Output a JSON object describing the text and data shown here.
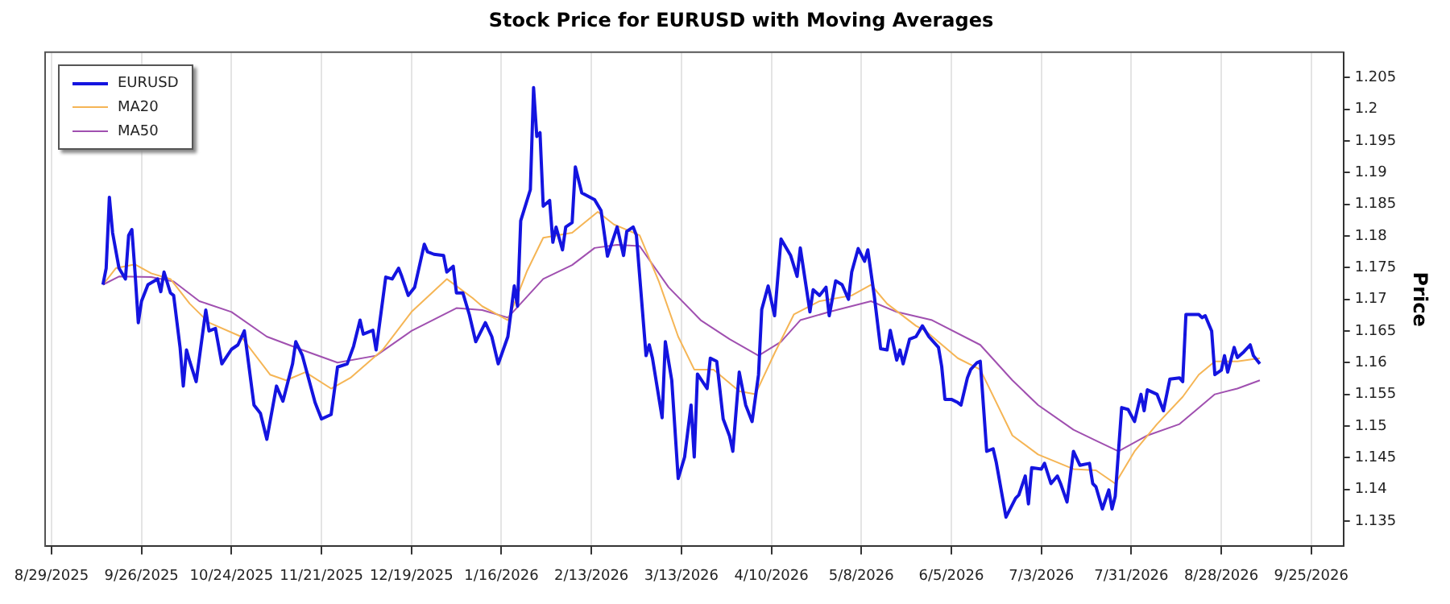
{
  "chart_data": {
    "type": "line",
    "title": "Stock Price for EURUSD with Moving Averages",
    "ylabel": "Price",
    "xlim": [
      "2025-08-27",
      "2026-10-05"
    ],
    "xticks": [
      {
        "value": "2025-08-29",
        "label": "8/29/2025"
      },
      {
        "value": "2025-09-26",
        "label": "9/26/2025"
      },
      {
        "value": "2025-10-24",
        "label": "10/24/2025"
      },
      {
        "value": "2025-11-21",
        "label": "11/21/2025"
      },
      {
        "value": "2025-12-19",
        "label": "12/19/2025"
      },
      {
        "value": "2026-01-16",
        "label": "1/16/2026"
      },
      {
        "value": "2026-02-13",
        "label": "2/13/2026"
      },
      {
        "value": "2026-03-13",
        "label": "3/13/2026"
      },
      {
        "value": "2026-04-10",
        "label": "4/10/2026"
      },
      {
        "value": "2026-05-08",
        "label": "5/8/2026"
      },
      {
        "value": "2026-06-05",
        "label": "6/5/2026"
      },
      {
        "value": "2026-07-03",
        "label": "7/3/2026"
      },
      {
        "value": "2026-07-31",
        "label": "7/31/2026"
      },
      {
        "value": "2026-08-28",
        "label": "8/28/2026"
      },
      {
        "value": "2026-09-25",
        "label": "9/25/2026"
      }
    ],
    "ylim": [
      1.131,
      1.209
    ],
    "yticks": [
      1.135,
      1.14,
      1.145,
      1.15,
      1.155,
      1.16,
      1.165,
      1.17,
      1.175,
      1.18,
      1.185,
      1.19,
      1.195,
      1.2,
      1.205
    ],
    "grid": "x",
    "legend": "top left",
    "marker": "none",
    "line_style": "solid",
    "series": [
      {
        "name": "EURUSD",
        "color": "#1414e0",
        "x": [
          "2025-09-14",
          "2025-09-15",
          "2025-09-16",
          "2025-09-17",
          "2025-09-19",
          "2025-09-21",
          "2025-09-22",
          "2025-09-23",
          "2025-09-24",
          "2025-09-25",
          "2025-09-26",
          "2025-09-28",
          "2025-10-01",
          "2025-10-02",
          "2025-10-03",
          "2025-10-05",
          "2025-10-06",
          "2025-10-08",
          "2025-10-09",
          "2025-10-10",
          "2025-10-11",
          "2025-10-13",
          "2025-10-16",
          "2025-10-17",
          "2025-10-19",
          "2025-10-21",
          "2025-10-24",
          "2025-10-26",
          "2025-10-28",
          "2025-10-31",
          "2025-11-02",
          "2025-11-04",
          "2025-11-07",
          "2025-11-09",
          "2025-11-12",
          "2025-11-13",
          "2025-11-15",
          "2025-11-19",
          "2025-11-21",
          "2025-11-24",
          "2025-11-26",
          "2025-11-29",
          "2025-12-01",
          "2025-12-03",
          "2025-12-04",
          "2025-12-07",
          "2025-12-08",
          "2025-12-11",
          "2025-12-13",
          "2025-12-15",
          "2025-12-16",
          "2025-12-18",
          "2025-12-20",
          "2025-12-23",
          "2025-12-24",
          "2025-12-26",
          "2025-12-29",
          "2025-12-30",
          "2026-01-01",
          "2026-01-02",
          "2026-01-04",
          "2026-01-06",
          "2026-01-08",
          "2026-01-11",
          "2026-01-13",
          "2026-01-15",
          "2026-01-18",
          "2026-01-20",
          "2026-01-21",
          "2026-01-22",
          "2026-01-25",
          "2026-01-26",
          "2026-01-27",
          "2026-01-28",
          "2026-01-29",
          "2026-01-31",
          "2026-02-01",
          "2026-02-02",
          "2026-02-04",
          "2026-02-05",
          "2026-02-07",
          "2026-02-08",
          "2026-02-10",
          "2026-02-14",
          "2026-02-16",
          "2026-02-18",
          "2026-02-21",
          "2026-02-23",
          "2026-02-24",
          "2026-02-26",
          "2026-02-27",
          "2026-03-02",
          "2026-03-03",
          "2026-03-04",
          "2026-03-07",
          "2026-03-08",
          "2026-03-10",
          "2026-03-12",
          "2026-03-14",
          "2026-03-16",
          "2026-03-17",
          "2026-03-18",
          "2026-03-21",
          "2026-03-22",
          "2026-03-24",
          "2026-03-26",
          "2026-03-28",
          "2026-03-29",
          "2026-03-31",
          "2026-04-02",
          "2026-04-04",
          "2026-04-06",
          "2026-04-07",
          "2026-04-09",
          "2026-04-11",
          "2026-04-13",
          "2026-04-16",
          "2026-04-18",
          "2026-04-19",
          "2026-04-22",
          "2026-04-23",
          "2026-04-25",
          "2026-04-27",
          "2026-04-28",
          "2026-04-30",
          "2026-05-02",
          "2026-05-04",
          "2026-05-05",
          "2026-05-07",
          "2026-05-09",
          "2026-05-10",
          "2026-05-12",
          "2026-05-14",
          "2026-05-16",
          "2026-05-17",
          "2026-05-19",
          "2026-05-20",
          "2026-05-21",
          "2026-05-23",
          "2026-05-25",
          "2026-05-27",
          "2026-05-29",
          "2026-06-01",
          "2026-06-02",
          "2026-06-03",
          "2026-06-05",
          "2026-06-07",
          "2026-06-08",
          "2026-06-10",
          "2026-06-11",
          "2026-06-13",
          "2026-06-14",
          "2026-06-16",
          "2026-06-18",
          "2026-06-19",
          "2026-06-22",
          "2026-06-25",
          "2026-06-26",
          "2026-06-28",
          "2026-06-29",
          "2026-06-30",
          "2026-07-03",
          "2026-07-04",
          "2026-07-06",
          "2026-07-08",
          "2026-07-09",
          "2026-07-11",
          "2026-07-13",
          "2026-07-15",
          "2026-07-18",
          "2026-07-19",
          "2026-07-20",
          "2026-07-22",
          "2026-07-24",
          "2026-07-25",
          "2026-07-26",
          "2026-07-28",
          "2026-07-30",
          "2026-08-01",
          "2026-08-03",
          "2026-08-04",
          "2026-08-05",
          "2026-08-08",
          "2026-08-10",
          "2026-08-12",
          "2026-08-15",
          "2026-08-16",
          "2026-08-17",
          "2026-08-21",
          "2026-08-22",
          "2026-08-23",
          "2026-08-25",
          "2026-08-26",
          "2026-08-28",
          "2026-08-29",
          "2026-08-30",
          "2026-09-01",
          "2026-09-02",
          "2026-09-04",
          "2026-09-06",
          "2026-09-07",
          "2026-09-09"
        ],
        "values": [
          1.1723,
          1.1749,
          1.1861,
          1.1805,
          1.1749,
          1.1732,
          1.1801,
          1.181,
          1.1741,
          1.1663,
          1.1697,
          1.1723,
          1.1732,
          1.1712,
          1.1743,
          1.171,
          1.1706,
          1.1624,
          1.1563,
          1.162,
          1.1602,
          1.157,
          1.1683,
          1.165,
          1.1654,
          1.1598,
          1.1621,
          1.1628,
          1.165,
          1.1533,
          1.152,
          1.1479,
          1.1563,
          1.1539,
          1.1598,
          1.1633,
          1.1612,
          1.1537,
          1.1511,
          1.1518,
          1.1593,
          1.1598,
          1.1626,
          1.1667,
          1.1645,
          1.1651,
          1.162,
          1.1735,
          1.1732,
          1.1749,
          1.1736,
          1.1706,
          1.1719,
          1.1787,
          1.1775,
          1.1771,
          1.1769,
          1.1743,
          1.1752,
          1.171,
          1.171,
          1.1676,
          1.1633,
          1.1663,
          1.1641,
          1.1598,
          1.1641,
          1.1721,
          1.1689,
          1.1824,
          1.1873,
          1.2034,
          1.1957,
          1.1963,
          1.1847,
          1.1856,
          1.179,
          1.1814,
          1.1778,
          1.1814,
          1.1821,
          1.1909,
          1.1868,
          1.1857,
          1.184,
          1.1768,
          1.1814,
          1.1769,
          1.1807,
          1.1814,
          1.1801,
          1.1611,
          1.1628,
          1.1607,
          1.1513,
          1.1633,
          1.1572,
          1.1417,
          1.1451,
          1.1533,
          1.1451,
          1.1582,
          1.1559,
          1.1607,
          1.1602,
          1.1511,
          1.1484,
          1.146,
          1.1585,
          1.1533,
          1.1507,
          1.1581,
          1.1684,
          1.1721,
          1.1674,
          1.1795,
          1.1769,
          1.1736,
          1.1781,
          1.168,
          1.1715,
          1.1706,
          1.1719,
          1.1674,
          1.1729,
          1.1723,
          1.17,
          1.1743,
          1.178,
          1.176,
          1.1778,
          1.1706,
          1.1622,
          1.162,
          1.1651,
          1.1604,
          1.162,
          1.1598,
          1.1637,
          1.1641,
          1.1658,
          1.1641,
          1.1624,
          1.1594,
          1.1542,
          1.1542,
          1.1537,
          1.1533,
          1.1576,
          1.1589,
          1.16,
          1.1602,
          1.146,
          1.1464,
          1.1442,
          1.1356,
          1.1386,
          1.1391,
          1.1421,
          1.1377,
          1.1434,
          1.1432,
          1.1441,
          1.1409,
          1.1421,
          1.1409,
          1.138,
          1.146,
          1.1438,
          1.1441,
          1.1409,
          1.1404,
          1.1369,
          1.1399,
          1.1369,
          1.1389,
          1.1529,
          1.1526,
          1.1507,
          1.155,
          1.1524,
          1.1557,
          1.155,
          1.1524,
          1.1574,
          1.1576,
          1.157,
          1.1676,
          1.1676,
          1.1671,
          1.1674,
          1.165,
          1.1581,
          1.1588,
          1.1611,
          1.1585,
          1.1624,
          1.1608,
          1.1617,
          1.1628,
          1.1611,
          1.1598
        ]
      },
      {
        "name": "MA20",
        "color": "#f5b555",
        "x": [
          "2025-09-14",
          "2025-09-18",
          "2025-09-24",
          "2025-09-29",
          "2025-10-05",
          "2025-10-11",
          "2025-10-17",
          "2025-10-27",
          "2025-11-05",
          "2025-11-10",
          "2025-11-16",
          "2025-11-24",
          "2025-11-30",
          "2025-12-10",
          "2025-12-19",
          "2025-12-30",
          "2026-01-07",
          "2026-01-10",
          "2026-01-18",
          "2026-01-24",
          "2026-01-29",
          "2026-02-07",
          "2026-02-15",
          "2026-02-20",
          "2026-02-28",
          "2026-03-06",
          "2026-03-12",
          "2026-03-17",
          "2026-03-23",
          "2026-03-31",
          "2026-04-05",
          "2026-04-11",
          "2026-04-17",
          "2026-04-25",
          "2026-05-05",
          "2026-05-11",
          "2026-05-16",
          "2026-05-25",
          "2026-05-28",
          "2026-06-07",
          "2026-06-14",
          "2026-06-24",
          "2026-07-02",
          "2026-07-13",
          "2026-07-20",
          "2026-07-26",
          "2026-08-01",
          "2026-08-08",
          "2026-08-16",
          "2026-08-21",
          "2026-08-26",
          "2026-09-02",
          "2026-09-09"
        ],
        "values": [
          1.1723,
          1.1749,
          1.1755,
          1.1741,
          1.1732,
          1.1693,
          1.1663,
          1.1641,
          1.1581,
          1.1572,
          1.1585,
          1.1559,
          1.1576,
          1.162,
          1.168,
          1.1732,
          1.1702,
          1.1689,
          1.1667,
          1.1745,
          1.1797,
          1.1805,
          1.1838,
          1.1818,
          1.1801,
          1.1728,
          1.1641,
          1.1589,
          1.1589,
          1.1555,
          1.155,
          1.1615,
          1.1676,
          1.1697,
          1.1706,
          1.1723,
          1.1693,
          1.1658,
          1.165,
          1.1607,
          1.1589,
          1.1485,
          1.1455,
          1.1432,
          1.143,
          1.1409,
          1.146,
          1.1503,
          1.1546,
          1.1581,
          1.1602,
          1.1602,
          1.1607
        ]
      },
      {
        "name": "MA50",
        "color": "#a050b0",
        "x": [
          "2025-09-14",
          "2025-09-19",
          "2025-09-29",
          "2025-10-06",
          "2025-10-14",
          "2025-10-24",
          "2025-11-04",
          "2025-11-15",
          "2025-11-26",
          "2025-12-08",
          "2025-12-19",
          "2026-01-02",
          "2026-01-10",
          "2026-01-18",
          "2026-01-29",
          "2026-02-07",
          "2026-02-14",
          "2026-02-21",
          "2026-02-28",
          "2026-03-09",
          "2026-03-19",
          "2026-03-28",
          "2026-04-06",
          "2026-04-13",
          "2026-04-19",
          "2026-04-28",
          "2026-05-11",
          "2026-05-19",
          "2026-05-30",
          "2026-06-14",
          "2026-06-24",
          "2026-07-02",
          "2026-07-13",
          "2026-07-20",
          "2026-07-27",
          "2026-08-05",
          "2026-08-15",
          "2026-08-26",
          "2026-09-02",
          "2026-09-09"
        ],
        "values": [
          1.1723,
          1.1736,
          1.1735,
          1.1728,
          1.1697,
          1.168,
          1.1641,
          1.162,
          1.16,
          1.1611,
          1.165,
          1.1686,
          1.1683,
          1.1671,
          1.1732,
          1.1754,
          1.1781,
          1.1786,
          1.1784,
          1.1719,
          1.1667,
          1.1637,
          1.1611,
          1.1633,
          1.1667,
          1.168,
          1.1697,
          1.168,
          1.1667,
          1.1628,
          1.1572,
          1.1533,
          1.1494,
          1.1477,
          1.146,
          1.1485,
          1.1503,
          1.155,
          1.1559,
          1.1572
        ]
      }
    ]
  }
}
